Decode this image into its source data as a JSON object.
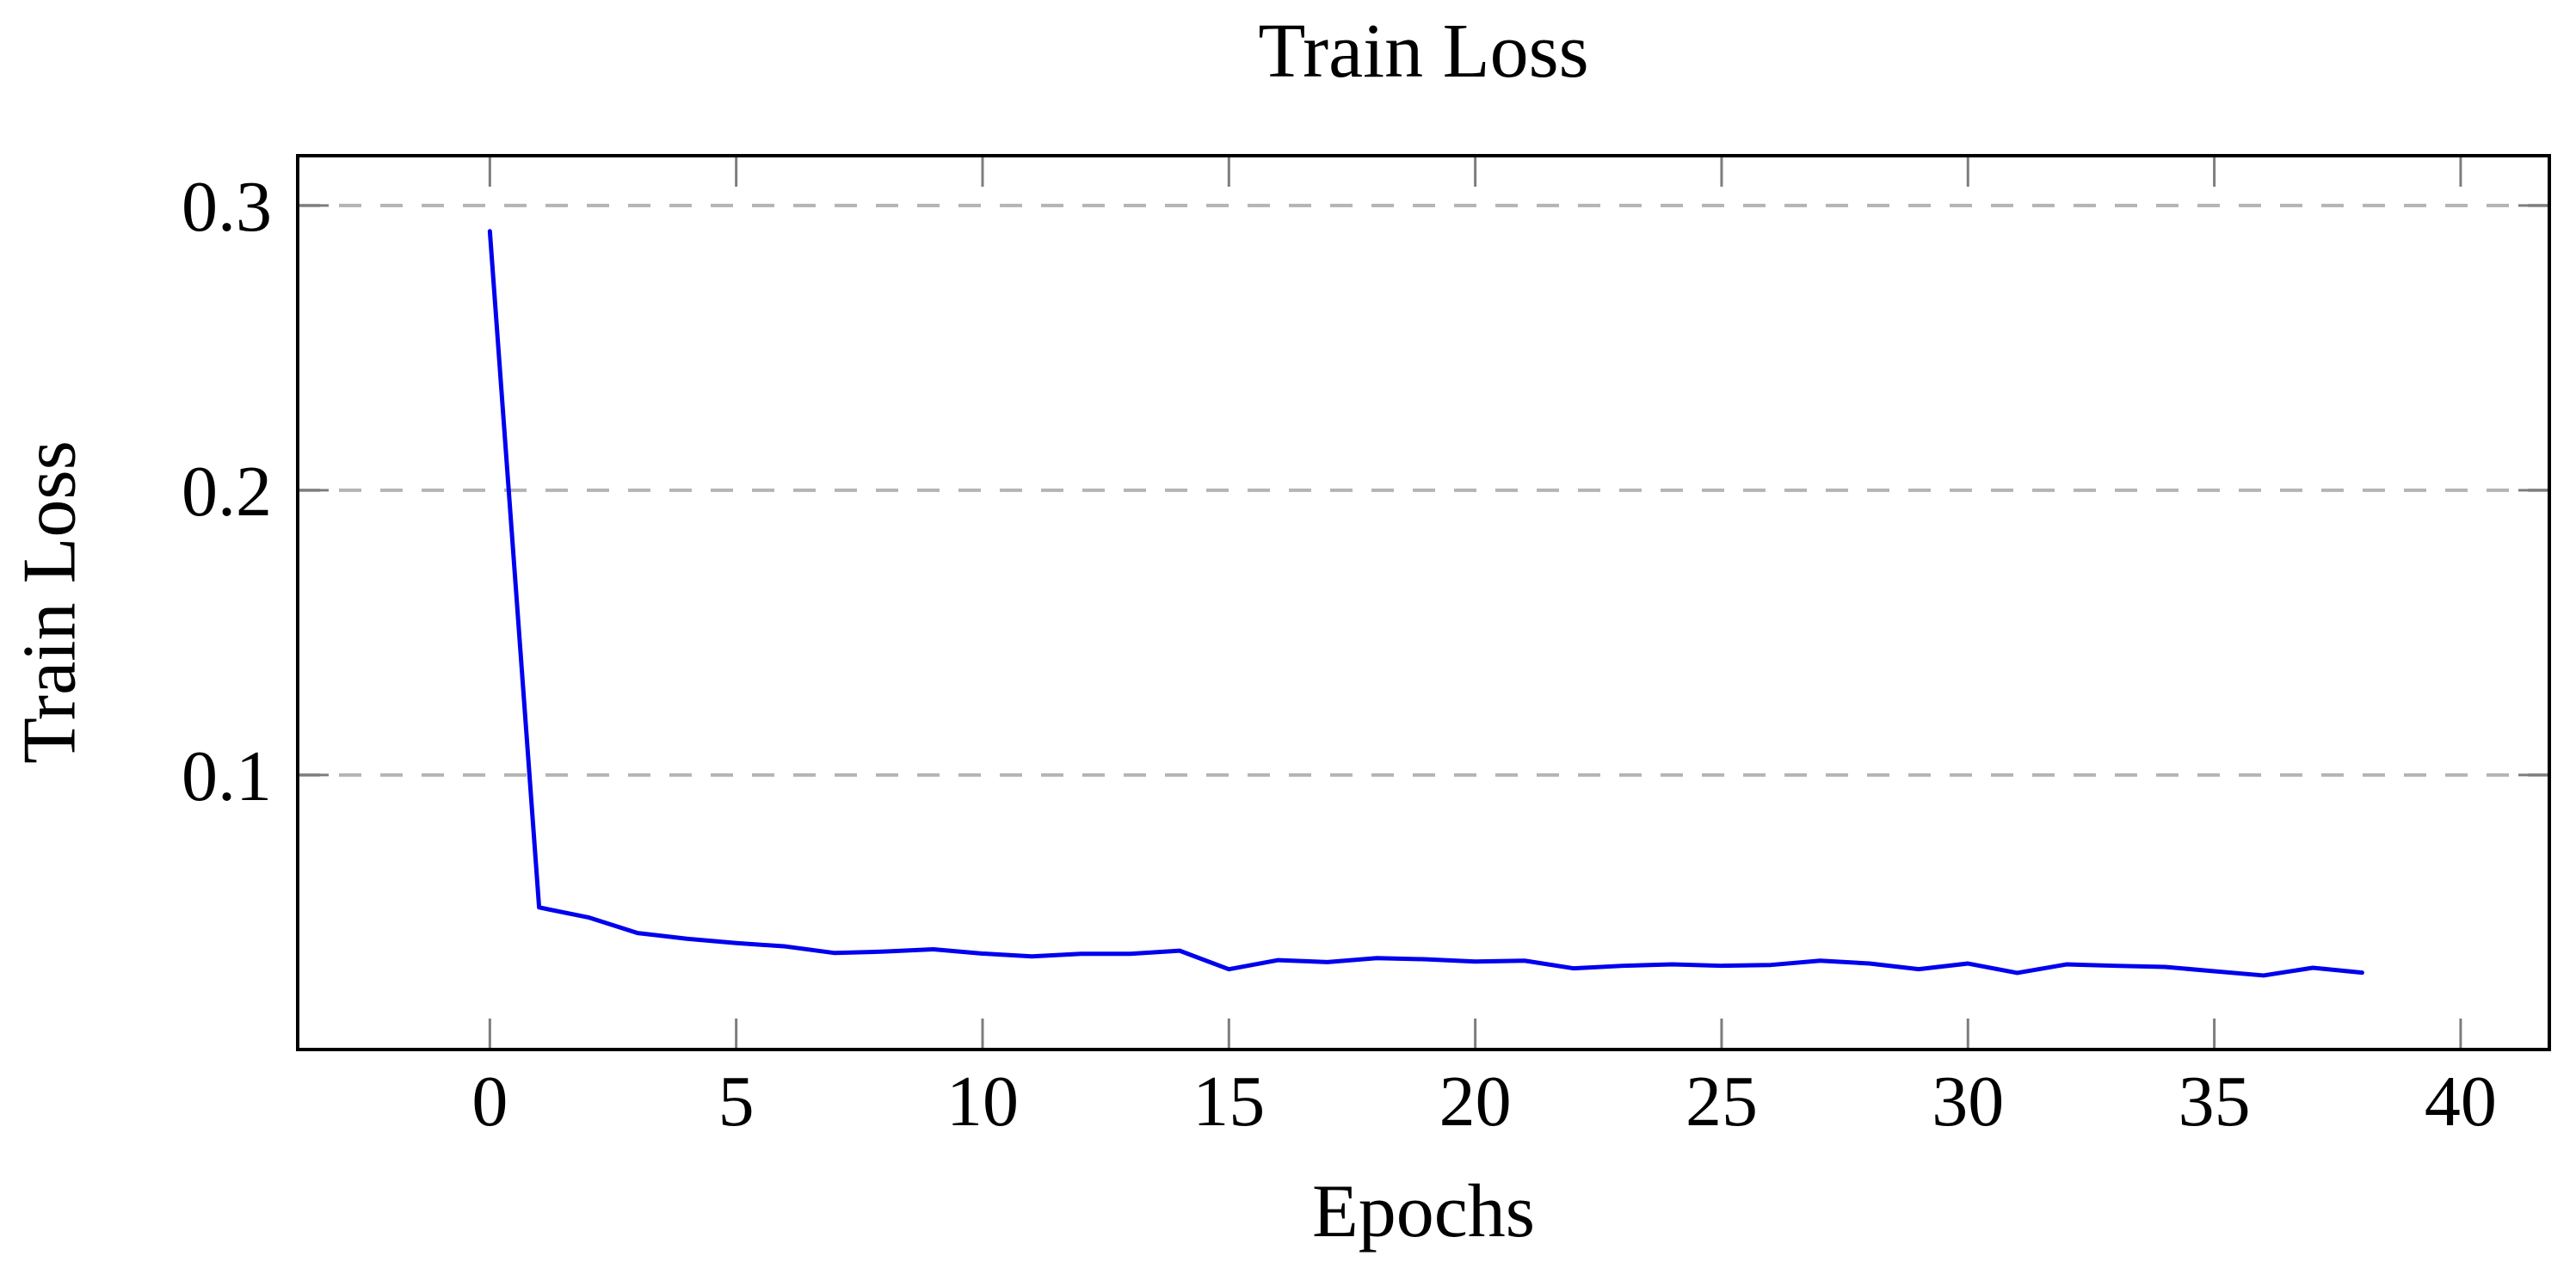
{
  "chart_data": {
    "type": "line",
    "title": "Train Loss",
    "xlabel": "Epochs",
    "ylabel": "Train Loss",
    "x": [
      0,
      1,
      2,
      3,
      4,
      5,
      6,
      7,
      8,
      9,
      10,
      11,
      12,
      13,
      14,
      15,
      16,
      17,
      18,
      19,
      20,
      21,
      22,
      23,
      24,
      25,
      26,
      27,
      28,
      29,
      30,
      31,
      32,
      33,
      34,
      35,
      36,
      37,
      38
    ],
    "series": [
      {
        "name": "train-loss",
        "values": [
          0.291,
          0.0535,
          0.05,
          0.0445,
          0.0425,
          0.041,
          0.0398,
          0.0375,
          0.038,
          0.0388,
          0.0373,
          0.0363,
          0.0372,
          0.0372,
          0.0383,
          0.0318,
          0.035,
          0.0343,
          0.0357,
          0.0353,
          0.0345,
          0.0348,
          0.0321,
          0.033,
          0.0335,
          0.033,
          0.0333,
          0.0348,
          0.0338,
          0.0318,
          0.0338,
          0.0305,
          0.0335,
          0.033,
          0.0326,
          0.0311,
          0.0296,
          0.0323,
          0.0306
        ]
      }
    ],
    "xlim": [
      -3.9,
      41.8
    ],
    "ylim": [
      0.0036,
      0.3175
    ],
    "xticks": [
      0,
      5,
      10,
      15,
      20,
      25,
      30,
      35,
      40
    ],
    "xtick_labels": [
      "0",
      "5",
      "10",
      "15",
      "20",
      "25",
      "30",
      "35",
      "40"
    ],
    "yticks": [
      0.1,
      0.2,
      0.3
    ],
    "ytick_labels": [
      "0.1",
      "0.2",
      "0.3"
    ],
    "grid": "horizontal-dashed",
    "legend_position": "none",
    "colors": {
      "line": "#0000ee",
      "grid": "#b4b4b4",
      "tick": "#7d7d7d",
      "frame": "#000000",
      "text": "#000000"
    }
  }
}
